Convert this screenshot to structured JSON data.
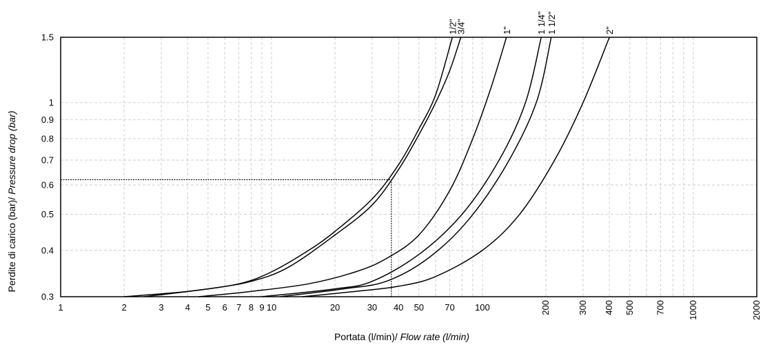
{
  "chart_data": {
    "type": "line",
    "xscale": "log",
    "yscale": "log",
    "xlim": [
      1,
      2000
    ],
    "ylim": [
      0.3,
      1.5
    ],
    "grid": true,
    "legend": "none",
    "xlabel_regular": "Portata (l/min)/ ",
    "xlabel_italic": "Flow rate (l/min)",
    "ylabel_regular": "Perdite di carico (bar)/ ",
    "ylabel_italic": "Pressure drop (bar)",
    "x_ticks": [
      {
        "value": 1,
        "label": "1"
      },
      {
        "value": 2,
        "label": "2"
      },
      {
        "value": 3,
        "label": "3"
      },
      {
        "value": 4,
        "label": "4"
      },
      {
        "value": 5,
        "label": "5"
      },
      {
        "value": 6,
        "label": "6"
      },
      {
        "value": 7,
        "label": "7"
      },
      {
        "value": 8,
        "label": "8"
      },
      {
        "value": 9,
        "label": "9"
      },
      {
        "value": 10,
        "label": "10"
      },
      {
        "value": 20,
        "label": "20"
      },
      {
        "value": 30,
        "label": "30"
      },
      {
        "value": 40,
        "label": "40"
      },
      {
        "value": 50,
        "label": "50"
      },
      {
        "value": 70,
        "label": "70"
      },
      {
        "value": 100,
        "label": "100"
      }
    ],
    "x_ticks_rotated": [
      {
        "value": 200,
        "label": "200"
      },
      {
        "value": 300,
        "label": "300"
      },
      {
        "value": 400,
        "label": "400"
      },
      {
        "value": 500,
        "label": "500"
      },
      {
        "value": 700,
        "label": "700"
      },
      {
        "value": 1000,
        "label": "1000"
      },
      {
        "value": 2000,
        "label": "2000"
      }
    ],
    "y_ticks": [
      {
        "value": 0.3,
        "label": "0.3"
      },
      {
        "value": 0.4,
        "label": "0.4"
      },
      {
        "value": 0.5,
        "label": "0.5"
      },
      {
        "value": 0.6,
        "label": "0.6"
      },
      {
        "value": 0.7,
        "label": "0.7"
      },
      {
        "value": 0.8,
        "label": "0.8"
      },
      {
        "value": 0.9,
        "label": "0.9"
      },
      {
        "value": 1,
        "label": "1"
      },
      {
        "value": 1.5,
        "label": "1.5"
      }
    ],
    "series": [
      {
        "name": "1/2\"",
        "points": [
          [
            2,
            0.3
          ],
          [
            4,
            0.31
          ],
          [
            7,
            0.325
          ],
          [
            10,
            0.35
          ],
          [
            15,
            0.4
          ],
          [
            20,
            0.45
          ],
          [
            30,
            0.55
          ],
          [
            40,
            0.68
          ],
          [
            50,
            0.85
          ],
          [
            60,
            1.05
          ],
          [
            72,
            1.5
          ]
        ]
      },
      {
        "name": "3/4\"",
        "points": [
          [
            2.5,
            0.3
          ],
          [
            5,
            0.315
          ],
          [
            8,
            0.33
          ],
          [
            12,
            0.36
          ],
          [
            20,
            0.44
          ],
          [
            30,
            0.53
          ],
          [
            40,
            0.66
          ],
          [
            50,
            0.82
          ],
          [
            60,
            1.0
          ],
          [
            70,
            1.22
          ],
          [
            79,
            1.5
          ]
        ]
      },
      {
        "name": "1\"",
        "points": [
          [
            4.5,
            0.3
          ],
          [
            8,
            0.31
          ],
          [
            15,
            0.325
          ],
          [
            25,
            0.35
          ],
          [
            35,
            0.38
          ],
          [
            50,
            0.44
          ],
          [
            70,
            0.58
          ],
          [
            90,
            0.8
          ],
          [
            110,
            1.1
          ],
          [
            130,
            1.5
          ]
        ]
      },
      {
        "name": "1 1/4\"",
        "points": [
          [
            9,
            0.3
          ],
          [
            20,
            0.315
          ],
          [
            30,
            0.33
          ],
          [
            50,
            0.39
          ],
          [
            80,
            0.5
          ],
          [
            120,
            0.7
          ],
          [
            160,
            1.0
          ],
          [
            190,
            1.5
          ]
        ]
      },
      {
        "name": "1 1/2\"",
        "points": [
          [
            11,
            0.3
          ],
          [
            22,
            0.315
          ],
          [
            35,
            0.33
          ],
          [
            55,
            0.38
          ],
          [
            85,
            0.48
          ],
          [
            130,
            0.68
          ],
          [
            180,
            1.0
          ],
          [
            212,
            1.5
          ]
        ]
      },
      {
        "name": "2\"",
        "points": [
          [
            14,
            0.3
          ],
          [
            25,
            0.31
          ],
          [
            40,
            0.32
          ],
          [
            60,
            0.34
          ],
          [
            100,
            0.4
          ],
          [
            150,
            0.5
          ],
          [
            220,
            0.7
          ],
          [
            300,
            1.0
          ],
          [
            400,
            1.5
          ]
        ]
      }
    ],
    "reference_point": {
      "x": 37,
      "y": 0.62
    }
  }
}
